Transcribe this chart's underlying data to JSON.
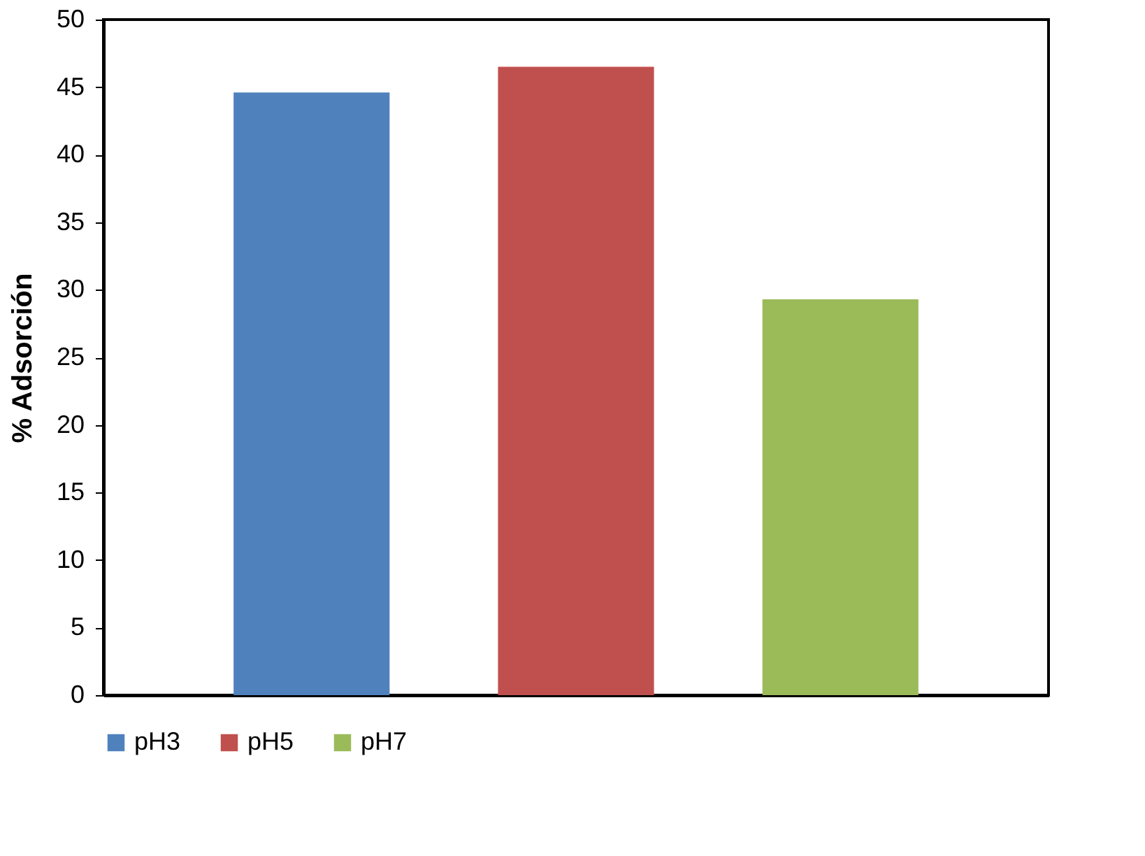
{
  "chart_data": {
    "type": "bar",
    "ylabel": "% Adsorción",
    "categories": [
      null
    ],
    "series": [
      {
        "name": "pH3",
        "color": "#4f81bd",
        "values": [
          44.6
        ]
      },
      {
        "name": "pH5",
        "color": "#c0504d",
        "values": [
          46.5
        ]
      },
      {
        "name": "pH7",
        "color": "#9bbb59",
        "values": [
          29.3
        ]
      }
    ],
    "ylim": [
      0,
      50
    ],
    "yticks": [
      0,
      5,
      10,
      15,
      20,
      25,
      30,
      35,
      40,
      45,
      50
    ],
    "grid": false,
    "legend": "bottom",
    "tick_labels": "y"
  }
}
